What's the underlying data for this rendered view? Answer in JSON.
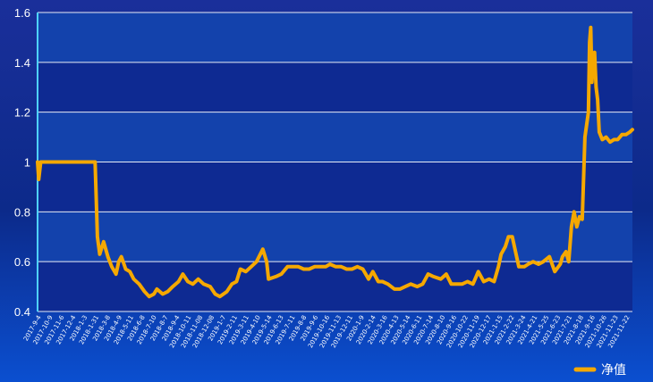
{
  "chart_data": {
    "type": "line",
    "series": [
      {
        "name": "净值",
        "color": "#f5a800",
        "points": [
          [
            "2017-09-04",
            1.0
          ],
          [
            "2017-09-07",
            0.93
          ],
          [
            "2017-09-12",
            1.0
          ],
          [
            "2017-10-20",
            1.0
          ],
          [
            "2017-12-01",
            1.0
          ],
          [
            "2018-01-15",
            1.0
          ],
          [
            "2018-01-31",
            1.0
          ],
          [
            "2018-02-06",
            0.7
          ],
          [
            "2018-02-12",
            0.63
          ],
          [
            "2018-02-22",
            0.68
          ],
          [
            "2018-03-05",
            0.62
          ],
          [
            "2018-03-15",
            0.58
          ],
          [
            "2018-03-26",
            0.55
          ],
          [
            "2018-04-02",
            0.6
          ],
          [
            "2018-04-09",
            0.62
          ],
          [
            "2018-04-20",
            0.57
          ],
          [
            "2018-05-01",
            0.56
          ],
          [
            "2018-05-11",
            0.53
          ],
          [
            "2018-05-25",
            0.51
          ],
          [
            "2018-06-08",
            0.48
          ],
          [
            "2018-06-20",
            0.46
          ],
          [
            "2018-07-02",
            0.47
          ],
          [
            "2018-07-10",
            0.49
          ],
          [
            "2018-07-25",
            0.47
          ],
          [
            "2018-08-07",
            0.48
          ],
          [
            "2018-08-20",
            0.5
          ],
          [
            "2018-09-04",
            0.52
          ],
          [
            "2018-09-15",
            0.55
          ],
          [
            "2018-09-28",
            0.52
          ],
          [
            "2018-10-11",
            0.51
          ],
          [
            "2018-10-25",
            0.53
          ],
          [
            "2018-11-08",
            0.51
          ],
          [
            "2018-11-25",
            0.5
          ],
          [
            "2018-12-08",
            0.47
          ],
          [
            "2018-12-20",
            0.46
          ],
          [
            "2019-01-07",
            0.48
          ],
          [
            "2019-01-20",
            0.51
          ],
          [
            "2019-02-01",
            0.52
          ],
          [
            "2019-02-11",
            0.57
          ],
          [
            "2019-02-25",
            0.56
          ],
          [
            "2019-03-11",
            0.58
          ],
          [
            "2019-03-25",
            0.6
          ],
          [
            "2019-04-10",
            0.65
          ],
          [
            "2019-04-20",
            0.6
          ],
          [
            "2019-04-25",
            0.53
          ],
          [
            "2019-05-14",
            0.54
          ],
          [
            "2019-05-28",
            0.55
          ],
          [
            "2019-06-13",
            0.58
          ],
          [
            "2019-06-27",
            0.58
          ],
          [
            "2019-07-11",
            0.58
          ],
          [
            "2019-07-25",
            0.57
          ],
          [
            "2019-08-08",
            0.57
          ],
          [
            "2019-08-22",
            0.58
          ],
          [
            "2019-09-06",
            0.58
          ],
          [
            "2019-09-20",
            0.58
          ],
          [
            "2019-10-01",
            0.59
          ],
          [
            "2019-10-16",
            0.58
          ],
          [
            "2019-10-30",
            0.58
          ],
          [
            "2019-11-13",
            0.57
          ],
          [
            "2019-11-27",
            0.57
          ],
          [
            "2019-12-11",
            0.58
          ],
          [
            "2019-12-25",
            0.57
          ],
          [
            "2020-01-09",
            0.53
          ],
          [
            "2020-01-20",
            0.56
          ],
          [
            "2020-02-03",
            0.52
          ],
          [
            "2020-02-14",
            0.52
          ],
          [
            "2020-02-28",
            0.51
          ],
          [
            "2020-03-16",
            0.49
          ],
          [
            "2020-03-30",
            0.49
          ],
          [
            "2020-04-13",
            0.5
          ],
          [
            "2020-04-27",
            0.51
          ],
          [
            "2020-05-14",
            0.5
          ],
          [
            "2020-05-28",
            0.51
          ],
          [
            "2020-06-11",
            0.55
          ],
          [
            "2020-06-25",
            0.54
          ],
          [
            "2020-07-14",
            0.53
          ],
          [
            "2020-07-28",
            0.55
          ],
          [
            "2020-08-10",
            0.51
          ],
          [
            "2020-08-25",
            0.51
          ],
          [
            "2020-09-07",
            0.51
          ],
          [
            "2020-09-21",
            0.52
          ],
          [
            "2020-10-05",
            0.51
          ],
          [
            "2020-10-19",
            0.56
          ],
          [
            "2020-11-02",
            0.52
          ],
          [
            "2020-11-16",
            0.53
          ],
          [
            "2020-11-29",
            0.52
          ],
          [
            "2020-12-10",
            0.58
          ],
          [
            "2020-12-17",
            0.63
          ],
          [
            "2020-12-28",
            0.66
          ],
          [
            "2021-01-05",
            0.7
          ],
          [
            "2021-01-15",
            0.7
          ],
          [
            "2021-01-22",
            0.65
          ],
          [
            "2021-02-01",
            0.58
          ],
          [
            "2021-02-15",
            0.58
          ],
          [
            "2021-02-25",
            0.59
          ],
          [
            "2021-03-10",
            0.6
          ],
          [
            "2021-03-24",
            0.59
          ],
          [
            "2021-04-05",
            0.6
          ],
          [
            "2021-04-21",
            0.62
          ],
          [
            "2021-05-05",
            0.56
          ],
          [
            "2021-05-19",
            0.59
          ],
          [
            "2021-05-25",
            0.62
          ],
          [
            "2021-06-03",
            0.64
          ],
          [
            "2021-06-10",
            0.6
          ],
          [
            "2021-06-17",
            0.74
          ],
          [
            "2021-06-24",
            0.8
          ],
          [
            "2021-07-01",
            0.74
          ],
          [
            "2021-07-08",
            0.78
          ],
          [
            "2021-07-15",
            0.77
          ],
          [
            "2021-07-22",
            1.1
          ],
          [
            "2021-07-31",
            1.2
          ],
          [
            "2021-08-03",
            1.48
          ],
          [
            "2021-08-06",
            1.54
          ],
          [
            "2021-08-09",
            1.32
          ],
          [
            "2021-08-12",
            1.4
          ],
          [
            "2021-08-16",
            1.44
          ],
          [
            "2021-08-20",
            1.3
          ],
          [
            "2021-08-24",
            1.25
          ],
          [
            "2021-08-28",
            1.12
          ],
          [
            "2021-09-05",
            1.09
          ],
          [
            "2021-09-15",
            1.1
          ],
          [
            "2021-09-25",
            1.08
          ],
          [
            "2021-10-05",
            1.09
          ],
          [
            "2021-10-15",
            1.09
          ],
          [
            "2021-10-26",
            1.11
          ],
          [
            "2021-11-05",
            1.11
          ],
          [
            "2021-11-15",
            1.12
          ],
          [
            "2021-11-22",
            1.13
          ]
        ]
      }
    ],
    "x_ticks": [
      "2017-9-4",
      "2017-10-9",
      "2017-11-6",
      "2017-12-4",
      "2018-1-3",
      "2018-1-31",
      "2018-3-8",
      "2018-4-9",
      "2018-5-11",
      "2018-6-8",
      "2018-7-10",
      "2018-8-7",
      "2018-9-4",
      "2018-10-11",
      "2018-11-08",
      "2018-12-08",
      "2019-1-7",
      "2019-2-11",
      "2019-3-11",
      "2019-4-10",
      "2019-5-14",
      "2019-6-13",
      "2019-7-11",
      "2019-8-8",
      "2019-9-6",
      "2019-10-16",
      "2019-11-13",
      "2019-12-11",
      "2020-1-9",
      "2020-2-14",
      "2020-3-16",
      "2020-4-13",
      "2020-5-14",
      "2020-6-11",
      "2020-7-14",
      "2020-8-10",
      "2020-9-16",
      "2020-10-22",
      "2020-11-19",
      "2020-12-17",
      "2021-1-15",
      "2021-2-22",
      "2021-3-24",
      "2021-4-21",
      "2021-5-25",
      "2021-6-23",
      "2021-7-21",
      "2021-8-18",
      "2021-9-16",
      "2021-10-26",
      "2021-11-23",
      "2021-11-22"
    ],
    "y_ticks": [
      "1.6",
      "1.4",
      "1.2",
      "1",
      "0.8",
      "0.6",
      "0.4"
    ],
    "ylim": [
      0.4,
      1.6
    ],
    "xlim": [
      "2017-09-04",
      "2021-11-22"
    ],
    "legend": {
      "label": "净值",
      "position": "bottom-right"
    },
    "colors": {
      "line": "#f5a800",
      "grid": "#ffffff",
      "axis": "#4fd2ff",
      "band": "#1a5fcc"
    }
  }
}
